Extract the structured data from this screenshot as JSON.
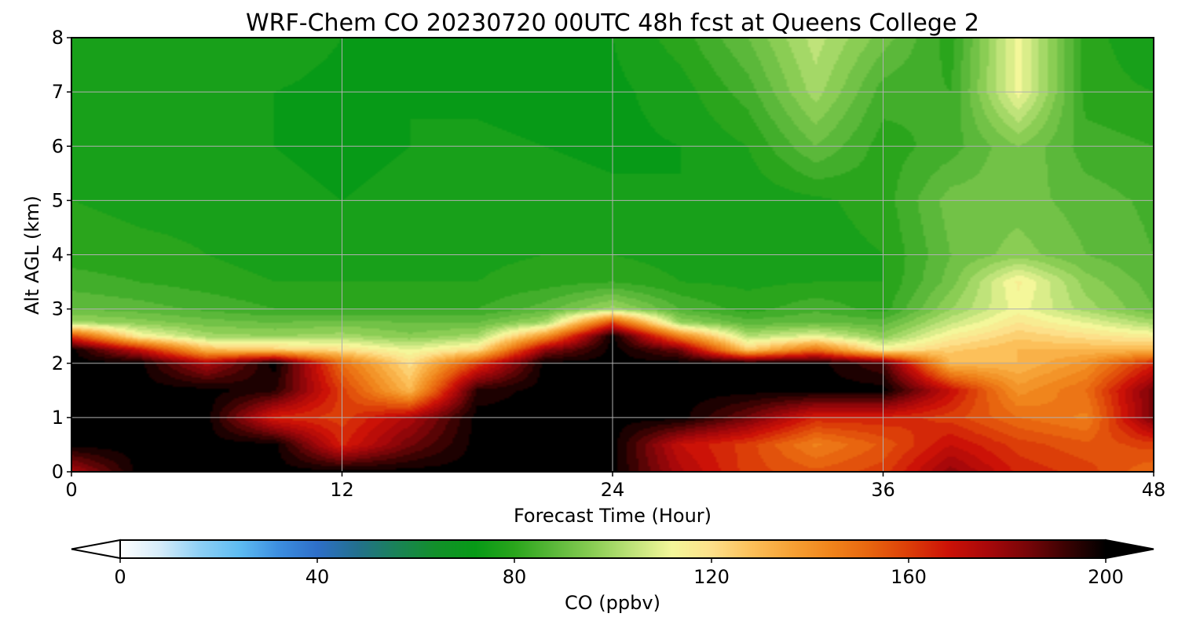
{
  "chart_data": {
    "type": "heatmap",
    "title": "WRF-Chem CO  20230720 00UTC 48h fcst at Queens College 2",
    "xlabel": "Forecast Time (Hour)",
    "ylabel": "Alt AGL (km)",
    "xlim": [
      0,
      48
    ],
    "ylim": [
      0,
      8
    ],
    "x_ticks": [
      0,
      12,
      24,
      36,
      48
    ],
    "y_ticks": [
      0,
      1,
      2,
      3,
      4,
      5,
      6,
      7,
      8
    ],
    "grid": true,
    "colorbar": {
      "label": "CO  (ppbv)",
      "min": 0,
      "max": 200,
      "ticks": [
        0,
        40,
        80,
        120,
        160,
        200
      ],
      "extend": "both",
      "orientation": "horizontal",
      "colors": [
        "#ffffff",
        "#d6ecfa",
        "#8fd0f5",
        "#5fbdf2",
        "#3d8fe0",
        "#2e6fc9",
        "#23708e",
        "#1a8258",
        "#12902a",
        "#079a17",
        "#2aa51c",
        "#5bb83a",
        "#8acd54",
        "#bfe37a",
        "#f4f79a",
        "#fde08a",
        "#fcc05a",
        "#f6a236",
        "#f0851c",
        "#e8650f",
        "#dc3e08",
        "#cc1207",
        "#a8080a",
        "#780508",
        "#3a0202",
        "#000000"
      ]
    },
    "x_hours": [
      0,
      3,
      6,
      9,
      12,
      15,
      18,
      21,
      24,
      27,
      30,
      33,
      36,
      39,
      42,
      45,
      48
    ],
    "y_km": [
      0,
      0.5,
      1,
      1.5,
      2,
      2.25,
      2.5,
      2.75,
      3,
      3.5,
      4,
      5,
      6,
      7,
      8
    ],
    "values_ppbv": [
      [
        175,
        200,
        200,
        200,
        200,
        200,
        200,
        200,
        200,
        175,
        160,
        155,
        160,
        180,
        165,
        160,
        150
      ],
      [
        200,
        200,
        200,
        200,
        165,
        185,
        200,
        200,
        200,
        170,
        160,
        145,
        155,
        170,
        160,
        155,
        160
      ],
      [
        200,
        200,
        200,
        165,
        160,
        175,
        200,
        200,
        200,
        200,
        185,
        165,
        165,
        160,
        150,
        145,
        185
      ],
      [
        200,
        200,
        200,
        195,
        160,
        130,
        195,
        200,
        200,
        200,
        200,
        200,
        200,
        170,
        140,
        150,
        185
      ],
      [
        200,
        200,
        175,
        200,
        150,
        120,
        160,
        200,
        200,
        200,
        200,
        200,
        190,
        130,
        130,
        140,
        165
      ],
      [
        200,
        170,
        130,
        125,
        120,
        110,
        120,
        180,
        200,
        185,
        125,
        150,
        115,
        125,
        130,
        130,
        130
      ],
      [
        160,
        115,
        100,
        98,
        100,
        95,
        100,
        140,
        200,
        145,
        102,
        110,
        96,
        115,
        125,
        120,
        115
      ],
      [
        100,
        96,
        92,
        90,
        92,
        90,
        90,
        100,
        160,
        98,
        88,
        90,
        88,
        105,
        118,
        110,
        100
      ],
      [
        90,
        88,
        85,
        82,
        82,
        82,
        82,
        88,
        100,
        86,
        80,
        85,
        80,
        98,
        112,
        100,
        90
      ],
      [
        84,
        82,
        80,
        78,
        78,
        78,
        78,
        80,
        82,
        78,
        77,
        78,
        78,
        92,
        115,
        96,
        88
      ],
      [
        80,
        79,
        78,
        76,
        76,
        77,
        77,
        78,
        78,
        76,
        75,
        76,
        78,
        90,
        96,
        90,
        86
      ],
      [
        78,
        77,
        77,
        75,
        74,
        75,
        76,
        76,
        75,
        74,
        75,
        77,
        80,
        92,
        92,
        88,
        85
      ],
      [
        77,
        76,
        76,
        74,
        73,
        74,
        75,
        74,
        73,
        74,
        78,
        90,
        80,
        84,
        94,
        84,
        82
      ],
      [
        76,
        76,
        75,
        74,
        73,
        74,
        73,
        72,
        73,
        76,
        84,
        100,
        84,
        82,
        112,
        80,
        78
      ],
      [
        74,
        76,
        77,
        76,
        74,
        74,
        72,
        72,
        74,
        80,
        90,
        104,
        92,
        80,
        112,
        80,
        74
      ]
    ]
  }
}
